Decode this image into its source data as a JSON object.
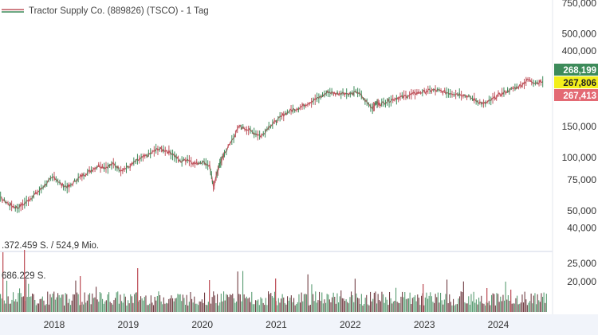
{
  "chart_data": {
    "type": "line",
    "title": "Tractor Supply Co. (889826) (TSCO) - 1 Tag",
    "price_scale": "log",
    "y_ticks": [
      "750,000",
      "500,000",
      "400,000",
      "150,000",
      "100,000",
      "75,000",
      "50,000",
      "40,000"
    ],
    "y_tick_values": [
      750000,
      500000,
      400000,
      150000,
      100000,
      75000,
      50000,
      40000
    ],
    "x_ticks": [
      "2018",
      "2019",
      "2020",
      "2021",
      "2022",
      "2023",
      "2024"
    ],
    "price_badges": [
      {
        "label": "268,199",
        "value": 268199,
        "color": "#3d8b5a",
        "text_color": "#ffffff"
      },
      {
        "label": "267,806",
        "value": 267806,
        "color": "#f3ef1b",
        "text_color": "#222222"
      },
      {
        "label": "267,413",
        "value": 267413,
        "color": "#e36a74",
        "text_color": "#ffffff"
      }
    ],
    "series": [
      {
        "color": "#c0565f",
        "x": [
          2017.0,
          2017.1,
          2017.2,
          2017.3,
          2017.4,
          2017.5,
          2017.6,
          2017.7,
          2017.8,
          2017.9,
          2018.0,
          2018.1,
          2018.2,
          2018.3,
          2018.4,
          2018.5,
          2018.6,
          2018.7,
          2018.8,
          2018.9,
          2019.0,
          2019.1,
          2019.2,
          2019.3,
          2019.4,
          2019.5,
          2019.6,
          2019.7,
          2019.8,
          2019.9,
          2020.0,
          2020.1,
          2020.15,
          2020.2,
          2020.25,
          2020.3,
          2020.4,
          2020.5,
          2020.6,
          2020.7,
          2020.8,
          2020.9,
          2021.0,
          2021.1,
          2021.2,
          2021.3,
          2021.4,
          2021.5,
          2021.6,
          2021.7,
          2021.8,
          2021.9,
          2022.0,
          2022.1,
          2022.2,
          2022.3,
          2022.35,
          2022.4,
          2022.5,
          2022.6,
          2022.7,
          2022.8,
          2022.9,
          2023.0,
          2023.1,
          2023.2,
          2023.3,
          2023.4,
          2023.5,
          2023.6,
          2023.7,
          2023.8,
          2023.9,
          2024.0,
          2024.1,
          2024.2,
          2024.3,
          2024.4,
          2024.5,
          2024.6
        ],
        "values": [
          72000,
          68000,
          62000,
          58000,
          54000,
          52000,
          55000,
          60000,
          65000,
          72000,
          78000,
          70000,
          68000,
          75000,
          80000,
          85000,
          90000,
          88000,
          92000,
          85000,
          88000,
          95000,
          100000,
          105000,
          112000,
          110000,
          105000,
          95000,
          98000,
          92000,
          95000,
          90000,
          68000,
          82000,
          95000,
          105000,
          125000,
          150000,
          145000,
          138000,
          132000,
          150000,
          160000,
          175000,
          185000,
          190000,
          200000,
          210000,
          220000,
          235000,
          230000,
          232000,
          228000,
          235000,
          210000,
          190000,
          205000,
          200000,
          208000,
          215000,
          220000,
          225000,
          232000,
          235000,
          240000,
          238000,
          233000,
          230000,
          228000,
          220000,
          210000,
          200000,
          210000,
          225000,
          235000,
          245000,
          255000,
          275000,
          265000,
          268000
        ]
      }
    ],
    "volume": {
      "label_total": ".372.459 S. / 524,9 Mio.",
      "label_avg": "686.229 S.",
      "ticks": [
        "25,000",
        "20,000"
      ]
    }
  }
}
